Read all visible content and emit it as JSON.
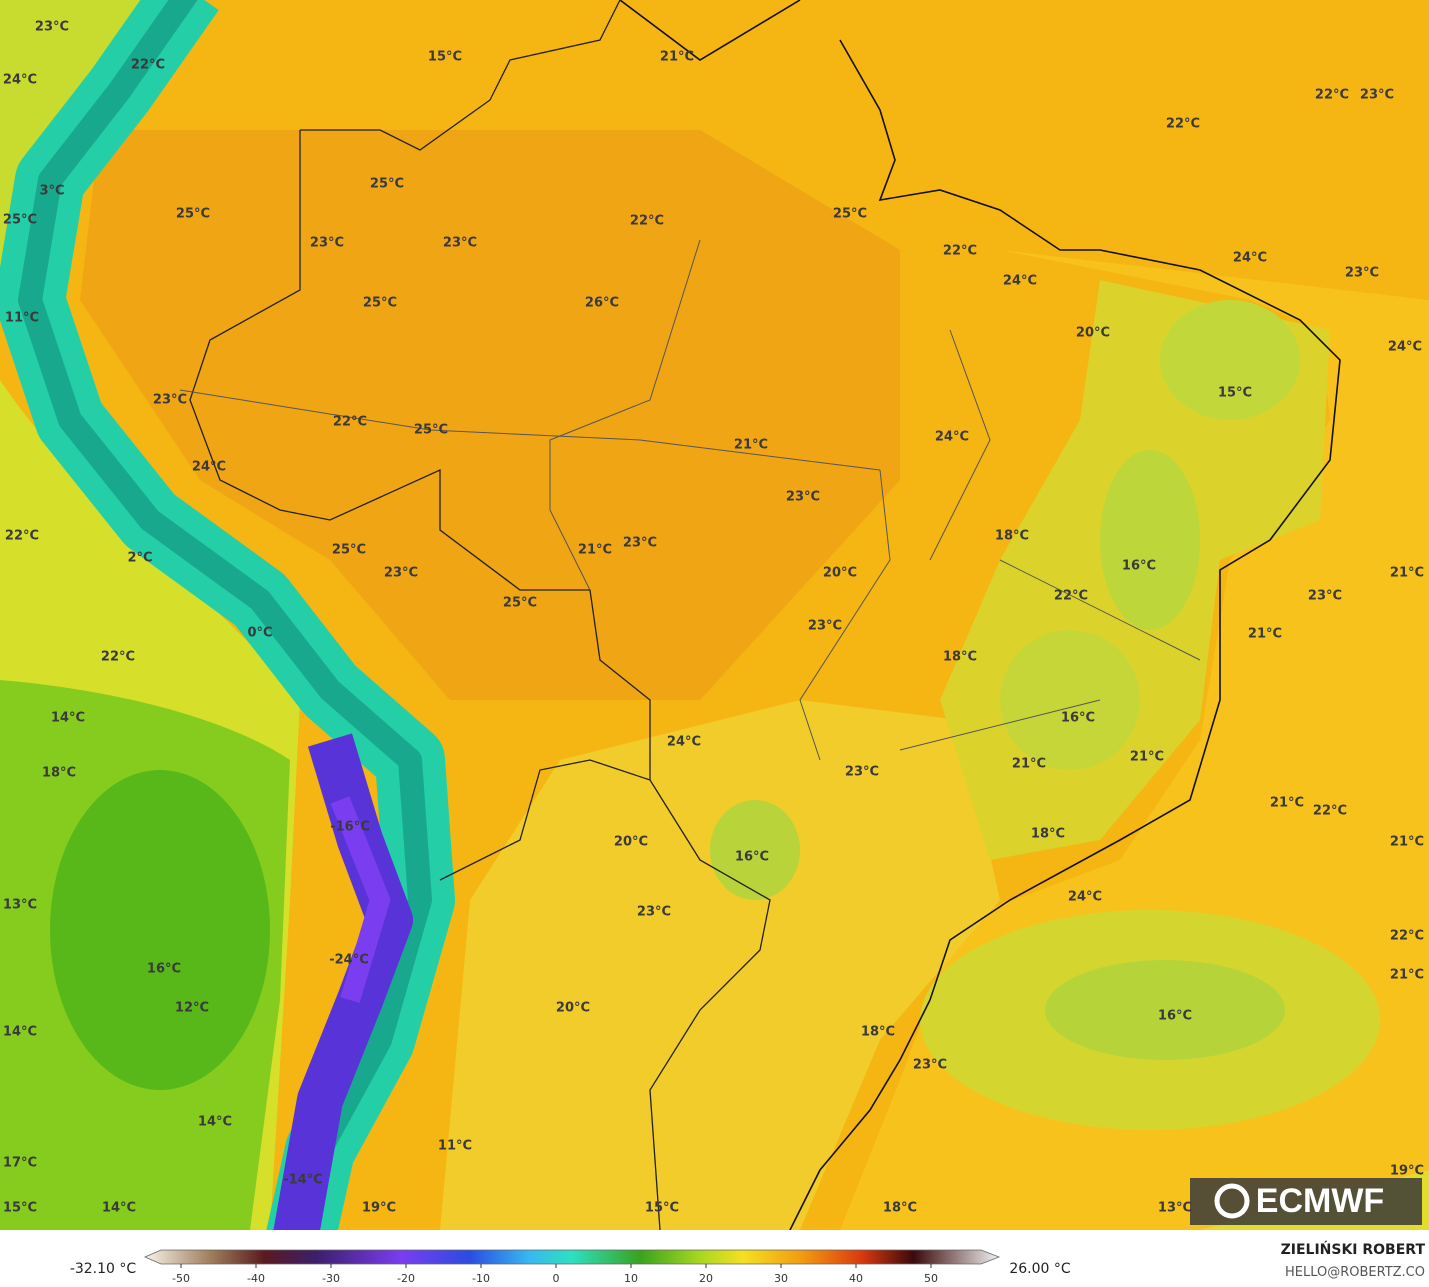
{
  "map": {
    "labels": [
      "23°C",
      "22°C",
      "24°C",
      "15°C",
      "21°C",
      "22°C",
      "23°C",
      "22°C",
      "3°C",
      "25°C",
      "25°C",
      "25°C",
      "22°C",
      "25°C",
      "23°C",
      "23°C",
      "22°C",
      "24°C",
      "24°C",
      "23°C",
      "25°C",
      "26°C",
      "11°C",
      "20°C",
      "24°C",
      "15°C",
      "23°C",
      "22°C",
      "25°C",
      "21°C",
      "24°C",
      "24°C",
      "23°C",
      "22°C",
      "18°C",
      "21°C",
      "23°C",
      "16°C",
      "2°C",
      "25°C",
      "23°C",
      "20°C",
      "21°C",
      "22°C",
      "23°C",
      "25°C",
      "23°C",
      "0°C",
      "21°C",
      "18°C",
      "22°C",
      "14°C",
      "16°C",
      "24°C",
      "21°C",
      "21°C",
      "18°C",
      "23°C",
      "21°C",
      "22°C",
      "-16°C",
      "18°C",
      "21°C",
      "20°C",
      "16°C",
      "24°C",
      "13°C",
      "23°C",
      "22°C",
      "-24°C",
      "16°C",
      "21°C",
      "12°C",
      "20°C",
      "16°C",
      "14°C",
      "18°C",
      "23°C",
      "14°C",
      "11°C",
      "17°C",
      "19°C",
      "-14°C",
      "15°C",
      "14°C",
      "19°C",
      "15°C",
      "18°C",
      "13°C"
    ],
    "logo": "ECMWF",
    "colorbar": {
      "min_label": "-32.10 °C",
      "max_label": "26.00 °C",
      "ticks": [
        -50,
        -40,
        -30,
        -20,
        -10,
        0,
        10,
        20,
        30,
        40,
        50
      ]
    },
    "author": "ZIELIŃSKI ROBERT",
    "contact": "HELLO@ROBERTZ.CO"
  }
}
